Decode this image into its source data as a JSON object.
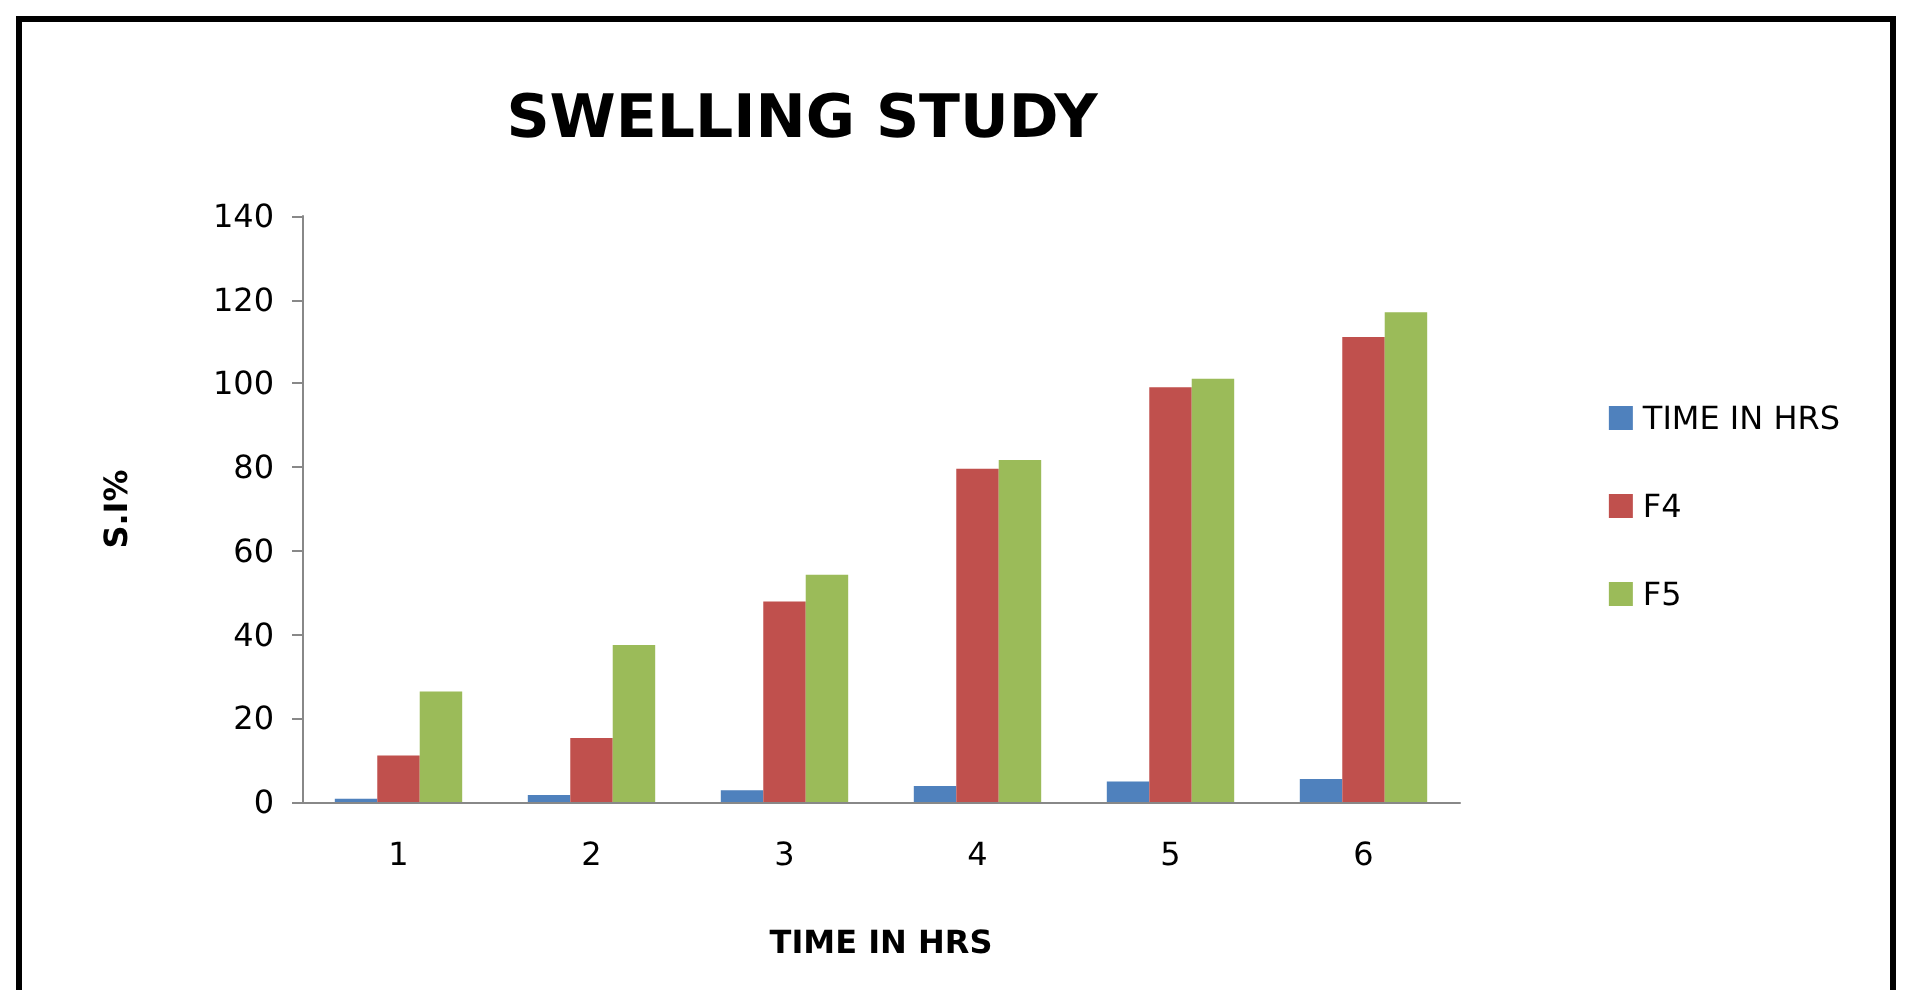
{
  "chart_data": {
    "type": "bar",
    "title": "SWELLING STUDY",
    "xlabel": "TIME IN HRS",
    "ylabel": "S.I%",
    "categories": [
      "1",
      "2",
      "3",
      "4",
      "5",
      "6"
    ],
    "series": [
      {
        "name": "TIME IN HRS",
        "color": "#4f81bd",
        "values": [
          0.8,
          1.7,
          2.8,
          3.8,
          4.9,
          5.5
        ]
      },
      {
        "name": "F4",
        "color": "#c0504d",
        "values": [
          11.1,
          15.3,
          47.9,
          79.6,
          99.1,
          111.1
        ]
      },
      {
        "name": "F5",
        "color": "#9bbb59",
        "values": [
          26.4,
          37.5,
          54.3,
          81.7,
          101.1,
          117.0
        ]
      }
    ],
    "ylim": [
      0,
      140
    ],
    "yticks": [
      0,
      20,
      40,
      60,
      80,
      100,
      120,
      140
    ],
    "grid": false,
    "legend": "right"
  }
}
